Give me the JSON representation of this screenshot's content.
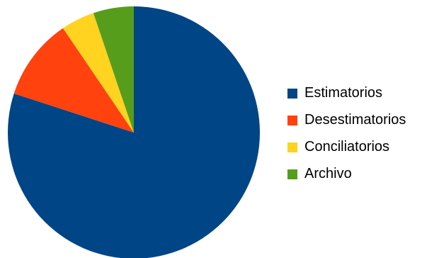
{
  "chart_data": {
    "type": "pie",
    "title": "",
    "categories": [
      "Estimatorios",
      "Desestimatorios",
      "Conciliatorios",
      "Archivo"
    ],
    "values": [
      80,
      10.5,
      4.3,
      5.2
    ],
    "colors": [
      "#004586",
      "#ff420e",
      "#ffd320",
      "#579d1c"
    ],
    "start_angle_deg": 0,
    "direction": "clockwise",
    "legend": {
      "position": "right",
      "items": [
        {
          "label": "Estimatorios",
          "color": "#004586"
        },
        {
          "label": "Desestimatorios",
          "color": "#ff420e"
        },
        {
          "label": "Conciliatorios",
          "color": "#ffd320"
        },
        {
          "label": "Archivo",
          "color": "#579d1c"
        }
      ]
    }
  }
}
